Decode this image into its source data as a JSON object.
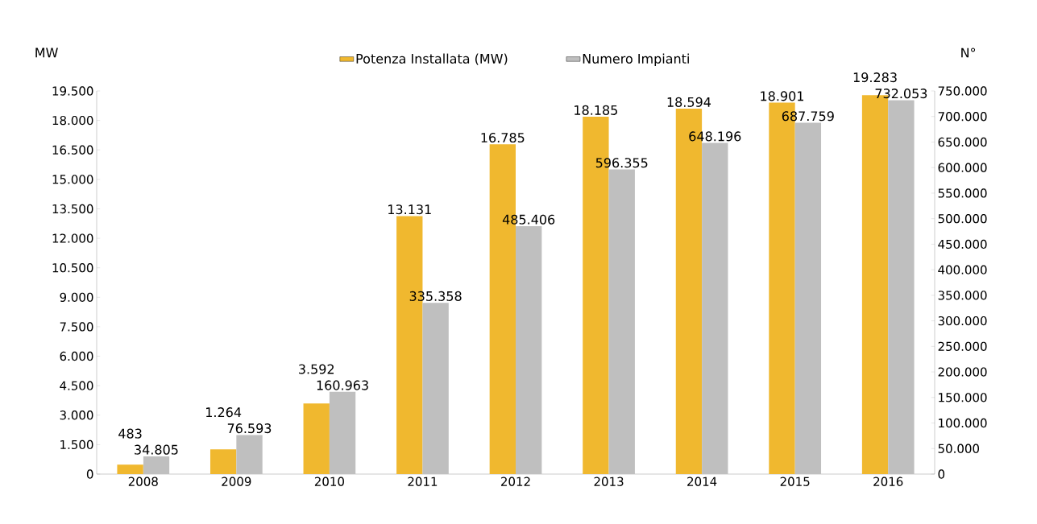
{
  "chart_data": {
    "type": "bar",
    "ylabel": "MW",
    "y2label": "N°",
    "legend": "top",
    "categories": [
      "2008",
      "2009",
      "2010",
      "2011",
      "2012",
      "2013",
      "2014",
      "2015",
      "2016"
    ],
    "series": [
      {
        "name": "Potenza Installata (MW)",
        "color": "#f0b82f",
        "values": [
          483,
          1264,
          3592,
          13131,
          16785,
          18185,
          18594,
          18901,
          19283
        ],
        "value_labels": [
          "483",
          "1.264",
          "3.592",
          "13.131",
          "16.785",
          "18.185",
          "18.594",
          "18.901",
          "19.283"
        ]
      },
      {
        "name": "Numero Impianti",
        "color": "#bfbfbf",
        "axis": "y2",
        "values": [
          34805,
          76593,
          160963,
          335358,
          485406,
          596355,
          648196,
          687759,
          732053
        ],
        "value_labels": [
          "34.805",
          "76.593",
          "160.963",
          "335.358",
          "485.406",
          "596.355",
          "648.196",
          "687.759",
          "732.053"
        ]
      }
    ],
    "ylim": [
      0,
      19500
    ],
    "yticks": [
      0,
      {
        "value": 1500,
        "label": "1.500"
      },
      {
        "value": 3000,
        "label": "3.000"
      },
      {
        "value": 4500,
        "label": "4.500"
      },
      {
        "value": 6000,
        "label": "6.000"
      },
      {
        "value": 7500,
        "label": "7.500"
      },
      {
        "value": 9000,
        "label": "9.000"
      },
      {
        "value": 10500,
        "label": "10.500"
      },
      {
        "value": 12000,
        "label": "12.000"
      },
      {
        "value": 13500,
        "label": "13.500"
      },
      {
        "value": 15000,
        "label": "15.000"
      },
      {
        "value": 16500,
        "label": "16.500"
      },
      {
        "value": 18000,
        "label": "18.000"
      },
      {
        "value": 19500,
        "label": "19.500"
      }
    ],
    "y2lim": [
      0,
      750000
    ],
    "y2ticks": [
      0,
      {
        "value": 50000,
        "label": "50.000"
      },
      {
        "value": 100000,
        "label": "100.000"
      },
      {
        "value": 150000,
        "label": "150.000"
      },
      {
        "value": 200000,
        "label": "200.000"
      },
      {
        "value": 250000,
        "label": "250.000"
      },
      {
        "value": 300000,
        "label": "300.000"
      },
      {
        "value": 350000,
        "label": "350.000"
      },
      {
        "value": 400000,
        "label": "400.000"
      },
      {
        "value": 450000,
        "label": "450.000"
      },
      {
        "value": 500000,
        "label": "500.000"
      },
      {
        "value": 550000,
        "label": "550.000"
      },
      {
        "value": 600000,
        "label": "600.000"
      },
      {
        "value": 650000,
        "label": "650.000"
      },
      {
        "value": 700000,
        "label": "700.000"
      },
      {
        "value": 750000,
        "label": "750.000"
      }
    ]
  }
}
